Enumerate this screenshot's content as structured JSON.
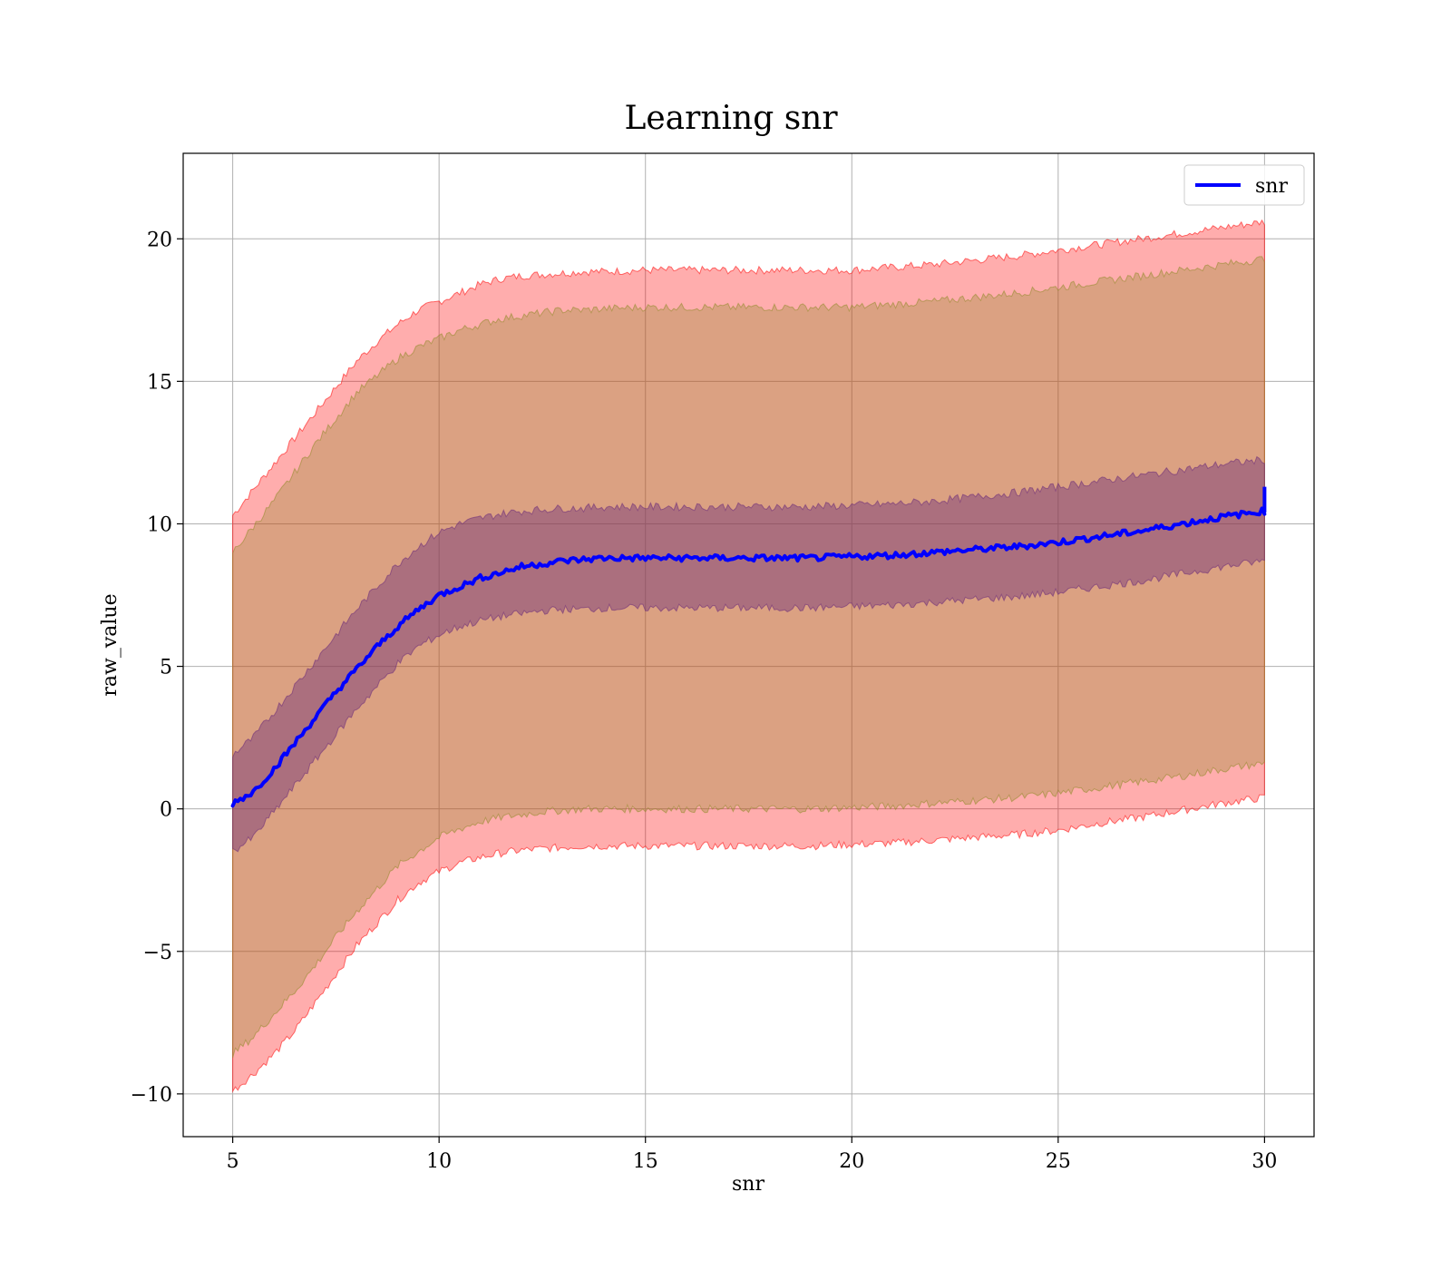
{
  "chart_data": {
    "type": "line",
    "title": "Learning snr",
    "xlabel": "snr",
    "ylabel": "raw_value",
    "xlim": [
      3.8,
      31.2
    ],
    "ylim": [
      -11.5,
      23
    ],
    "xticks": [
      5,
      10,
      15,
      20,
      25,
      30
    ],
    "yticks": [
      -10,
      -5,
      0,
      5,
      10,
      15,
      20
    ],
    "ytick_labels": [
      "−10",
      "−5",
      "0",
      "5",
      "10",
      "15",
      "20"
    ],
    "grid": true,
    "legend": {
      "position": "top-right",
      "entries": [
        {
          "label": "snr",
          "color": "#0000ff"
        }
      ]
    },
    "x": [
      5,
      5.5,
      6,
      6.5,
      7,
      7.5,
      8,
      8.5,
      9,
      9.5,
      10,
      10.5,
      11,
      11.5,
      12,
      12.5,
      13,
      13.5,
      14,
      15,
      16,
      17,
      18,
      19,
      20,
      21,
      22,
      23,
      24,
      25,
      26,
      27,
      28,
      29,
      30
    ],
    "series": [
      {
        "name": "snr",
        "color": "#0000ff",
        "values": [
          0.2,
          0.6,
          1.4,
          2.3,
          3.2,
          4.1,
          4.9,
          5.7,
          6.4,
          7.0,
          7.5,
          7.8,
          8.1,
          8.3,
          8.5,
          8.6,
          8.7,
          8.75,
          8.8,
          8.8,
          8.8,
          8.8,
          8.8,
          8.8,
          8.85,
          8.9,
          9.0,
          9.1,
          9.2,
          9.35,
          9.55,
          9.75,
          10.0,
          10.25,
          10.45
        ],
        "final_spike": [
          10.4,
          11.3
        ]
      }
    ],
    "bands": [
      {
        "role": "outer",
        "fill": "#ff0000",
        "opacity": 0.32,
        "upper": [
          10.3,
          11.2,
          12.1,
          13.0,
          13.9,
          14.8,
          15.7,
          16.4,
          17.0,
          17.5,
          17.8,
          18.1,
          18.4,
          18.6,
          18.7,
          18.75,
          18.8,
          18.85,
          18.85,
          18.9,
          18.9,
          18.9,
          18.9,
          18.9,
          18.9,
          19.0,
          19.1,
          19.25,
          19.4,
          19.6,
          19.8,
          20.0,
          20.2,
          20.4,
          20.6
        ],
        "lower": [
          -9.9,
          -9.3,
          -8.6,
          -7.8,
          -6.8,
          -5.8,
          -4.8,
          -4.0,
          -3.2,
          -2.6,
          -2.2,
          -1.9,
          -1.7,
          -1.55,
          -1.45,
          -1.4,
          -1.35,
          -1.3,
          -1.3,
          -1.3,
          -1.3,
          -1.3,
          -1.3,
          -1.3,
          -1.25,
          -1.2,
          -1.1,
          -1.0,
          -0.9,
          -0.75,
          -0.5,
          -0.3,
          -0.05,
          0.2,
          0.4
        ]
      },
      {
        "role": "middle",
        "fill": "#8f8a28",
        "opacity": 0.32,
        "upper": [
          9.0,
          9.9,
          10.8,
          11.8,
          12.8,
          13.7,
          14.6,
          15.2,
          15.8,
          16.2,
          16.5,
          16.8,
          17.0,
          17.2,
          17.3,
          17.4,
          17.5,
          17.5,
          17.55,
          17.6,
          17.6,
          17.6,
          17.6,
          17.6,
          17.6,
          17.7,
          17.8,
          17.95,
          18.1,
          18.3,
          18.5,
          18.7,
          18.9,
          19.1,
          19.3
        ],
        "lower": [
          -8.6,
          -8.0,
          -7.2,
          -6.4,
          -5.5,
          -4.5,
          -3.6,
          -2.8,
          -2.0,
          -1.5,
          -1.0,
          -0.7,
          -0.45,
          -0.3,
          -0.2,
          -0.1,
          -0.05,
          0.0,
          0.0,
          0.0,
          0.0,
          0.0,
          0.0,
          0.0,
          0.05,
          0.1,
          0.2,
          0.3,
          0.4,
          0.55,
          0.75,
          0.95,
          1.15,
          1.4,
          1.6
        ]
      },
      {
        "role": "inner",
        "fill": "#6a2a7a",
        "opacity": 0.42,
        "upper": [
          1.9,
          2.5,
          3.4,
          4.3,
          5.2,
          6.1,
          7.0,
          7.8,
          8.6,
          9.2,
          9.7,
          10.0,
          10.2,
          10.35,
          10.45,
          10.5,
          10.55,
          10.55,
          10.6,
          10.6,
          10.6,
          10.6,
          10.6,
          10.6,
          10.65,
          10.7,
          10.8,
          10.95,
          11.1,
          11.3,
          11.5,
          11.7,
          11.9,
          12.1,
          12.25
        ],
        "lower": [
          -1.5,
          -1.0,
          -0.1,
          0.8,
          1.7,
          2.6,
          3.5,
          4.3,
          5.1,
          5.7,
          6.1,
          6.4,
          6.6,
          6.75,
          6.85,
          6.95,
          7.0,
          7.0,
          7.05,
          7.05,
          7.05,
          7.05,
          7.05,
          7.05,
          7.1,
          7.15,
          7.25,
          7.35,
          7.45,
          7.6,
          7.8,
          8.0,
          8.25,
          8.5,
          8.7
        ]
      }
    ]
  }
}
